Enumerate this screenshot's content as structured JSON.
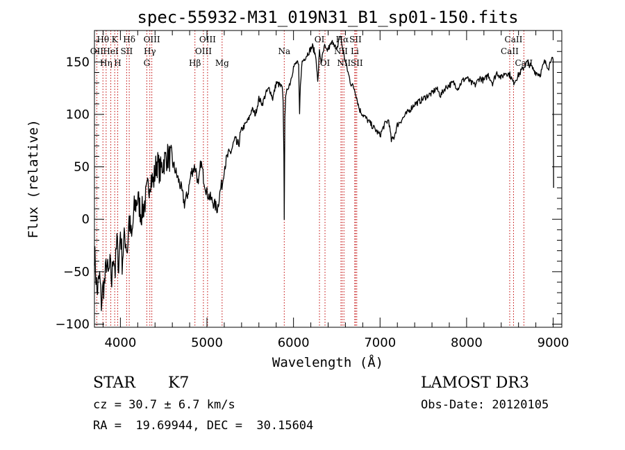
{
  "chart_data": {
    "type": "line",
    "title": "spec-55932-M31_019N31_B1_sp01-150.fits",
    "xlabel": "Wavelength (Å)",
    "ylabel": "Flux (relative)",
    "xlim": [
      3700,
      9100
    ],
    "ylim": [
      -103,
      180
    ],
    "xticks": [
      4000,
      5000,
      6000,
      7000,
      8000,
      9000
    ],
    "yticks": [
      -100,
      -50,
      0,
      50,
      100,
      150
    ],
    "spectrum": {
      "x": [
        3700,
        3730,
        3760,
        3780,
        3800,
        3820,
        3840,
        3860,
        3880,
        3900,
        3920,
        3940,
        3960,
        3980,
        4000,
        4020,
        4050,
        4080,
        4100,
        4130,
        4160,
        4200,
        4240,
        4280,
        4320,
        4350,
        4380,
        4420,
        4460,
        4500,
        4540,
        4580,
        4620,
        4660,
        4700,
        4740,
        4780,
        4820,
        4860,
        4880,
        4900,
        4930,
        4960,
        5000,
        5040,
        5080,
        5120,
        5160,
        5180,
        5200,
        5240,
        5280,
        5320,
        5360,
        5400,
        5440,
        5480,
        5520,
        5560,
        5600,
        5640,
        5680,
        5720,
        5760,
        5800,
        5840,
        5870,
        5880,
        5889,
        5893,
        5897,
        5900,
        5910,
        5930,
        5960,
        6000,
        6040,
        6060,
        6070,
        6080,
        6100,
        6140,
        6180,
        6220,
        6260,
        6280,
        6300,
        6320,
        6360,
        6380,
        6420,
        6460,
        6500,
        6530,
        6550,
        6562,
        6575,
        6600,
        6630,
        6660,
        6700,
        6720,
        6760,
        6800,
        6850,
        6900,
        6950,
        7000,
        7050,
        7100,
        7130,
        7160,
        7200,
        7250,
        7300,
        7350,
        7400,
        7450,
        7500,
        7550,
        7600,
        7650,
        7700,
        7750,
        7800,
        7850,
        7900,
        7950,
        8000,
        8050,
        8100,
        8150,
        8200,
        8250,
        8300,
        8350,
        8400,
        8450,
        8500,
        8540,
        8580,
        8620,
        8660,
        8700,
        8750,
        8800,
        8850,
        8900,
        8950,
        8980,
        9000,
        9005
      ],
      "y": [
        -30,
        -70,
        -55,
        -80,
        -65,
        -60,
        -40,
        -55,
        -45,
        -60,
        -30,
        -50,
        -20,
        -45,
        -10,
        -40,
        -15,
        -30,
        0,
        -20,
        10,
        20,
        5,
        15,
        30,
        40,
        35,
        55,
        45,
        55,
        60,
        58,
        50,
        40,
        30,
        15,
        25,
        45,
        50,
        45,
        30,
        55,
        40,
        25,
        20,
        15,
        10,
        30,
        35,
        50,
        60,
        65,
        75,
        70,
        85,
        90,
        95,
        105,
        100,
        115,
        110,
        120,
        125,
        115,
        130,
        128,
        125,
        110,
        60,
        2,
        50,
        100,
        115,
        125,
        130,
        145,
        150,
        145,
        100,
        130,
        150,
        155,
        160,
        165,
        155,
        130,
        160,
        150,
        165,
        160,
        165,
        170,
        160,
        175,
        172,
        165,
        160,
        150,
        140,
        130,
        125,
        120,
        105,
        100,
        95,
        90,
        85,
        80,
        90,
        95,
        75,
        78,
        90,
        95,
        100,
        105,
        110,
        112,
        115,
        118,
        120,
        125,
        118,
        125,
        128,
        130,
        125,
        132,
        135,
        130,
        128,
        135,
        132,
        138,
        130,
        140,
        135,
        140,
        138,
        130,
        135,
        140,
        145,
        150,
        145,
        140,
        138,
        150,
        145,
        155,
        150,
        30
      ]
    },
    "lines": [
      {
        "label": "Hθ",
        "wl": 3798,
        "row": 1
      },
      {
        "label": "OII",
        "wl": 3727,
        "row": 2
      },
      {
        "label": "Hη",
        "wl": 3835,
        "row": 3
      },
      {
        "label": "K",
        "wl": 3934,
        "row": 1
      },
      {
        "label": "HeI",
        "wl": 3889,
        "row": 2
      },
      {
        "label": "H",
        "wl": 3969,
        "row": 3
      },
      {
        "label": "Hδ",
        "wl": 4102,
        "row": 1
      },
      {
        "label": "SII",
        "wl": 4072,
        "row": 2
      },
      {
        "label": "OIII",
        "wl": 4363,
        "row": 1
      },
      {
        "label": "Hγ",
        "wl": 4340,
        "row": 2
      },
      {
        "label": "G",
        "wl": 4305,
        "row": 3
      },
      {
        "label": "Hβ",
        "wl": 4861,
        "row": 3
      },
      {
        "label": "OIII",
        "wl": 5007,
        "row": 1
      },
      {
        "label": "OIII",
        "wl": 4959,
        "row": 2
      },
      {
        "label": "Mg",
        "wl": 5175,
        "row": 3
      },
      {
        "label": "Na",
        "wl": 5893,
        "row": 2
      },
      {
        "label": "OI",
        "wl": 6300,
        "row": 1
      },
      {
        "label": "OI",
        "wl": 6364,
        "row": 3
      },
      {
        "label": "Hα",
        "wl": 6563,
        "row": 1
      },
      {
        "label": "NII",
        "wl": 6548,
        "row": 2
      },
      {
        "label": "NII",
        "wl": 6583,
        "row": 3
      },
      {
        "label": "SII",
        "wl": 6716,
        "row": 1
      },
      {
        "label": "Li",
        "wl": 6708,
        "row": 2
      },
      {
        "label": "SII",
        "wl": 6731,
        "row": 3
      },
      {
        "label": "CaII",
        "wl": 8542,
        "row": 1
      },
      {
        "label": "CaII",
        "wl": 8498,
        "row": 2
      },
      {
        "label": "CaII",
        "wl": 8662,
        "row": 3
      }
    ]
  },
  "info": {
    "object_class": "STAR",
    "subclass": "K7",
    "survey": "LAMOST DR3",
    "cz": "cz = 30.7 ± 6.7 km/s",
    "obs_date": "Obs-Date: 20120105",
    "radec": "RA =  19.69944, DEC =  30.15604"
  }
}
